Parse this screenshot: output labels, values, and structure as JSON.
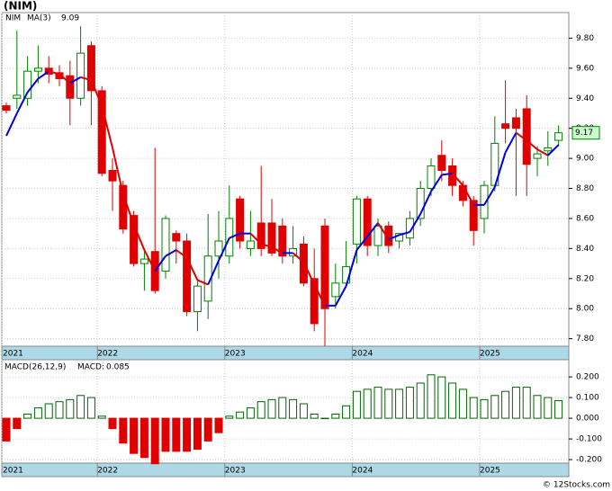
{
  "chart_data": [
    {
      "type": "candlestick",
      "title": "(NIM)",
      "categories": [
        "2021",
        null,
        null,
        null,
        null,
        null,
        null,
        null,
        null,
        "2022",
        null,
        null,
        null,
        null,
        null,
        null,
        null,
        null,
        null,
        null,
        null,
        "2023",
        null,
        null,
        null,
        null,
        null,
        null,
        null,
        null,
        null,
        null,
        null,
        "2024",
        null,
        null,
        null,
        null,
        null,
        null,
        null,
        null,
        null,
        null,
        null,
        "2025",
        null,
        null,
        null,
        null,
        null,
        null,
        null
      ],
      "series": [
        {
          "name": "NIM",
          "up_color": "#008000",
          "down_color": "#e00000",
          "open": [
            9.35,
            9.4,
            9.4,
            9.58,
            9.6,
            9.57,
            9.55,
            9.4,
            9.75,
            9.45,
            8.92,
            8.82,
            8.62,
            8.3,
            8.38,
            8.25,
            8.5,
            8.45,
            7.98,
            8.05,
            8.35,
            8.35,
            8.73,
            8.4,
            8.57,
            8.57,
            8.55,
            8.35,
            8.43,
            8.2,
            8.55,
            8.08,
            8.17,
            8.43,
            8.73,
            8.42,
            8.55,
            8.45,
            8.47,
            8.6,
            8.8,
            9.02,
            8.95,
            8.82,
            8.72,
            8.6,
            8.82,
            9.23,
            9.27,
            9.33,
            9.0,
            9.05,
            9.12
          ],
          "high": [
            9.37,
            9.85,
            9.68,
            9.75,
            9.68,
            9.62,
            9.65,
            9.88,
            9.78,
            9.48,
            9.0,
            8.85,
            8.65,
            8.4,
            9.07,
            8.62,
            8.52,
            8.5,
            8.2,
            8.63,
            8.65,
            8.82,
            8.75,
            8.65,
            8.95,
            8.73,
            8.6,
            8.55,
            8.48,
            8.4,
            8.6,
            8.3,
            8.45,
            8.75,
            8.75,
            8.6,
            8.58,
            8.5,
            8.65,
            8.85,
            9.0,
            9.12,
            9.0,
            8.85,
            8.75,
            8.85,
            9.28,
            9.52,
            9.33,
            9.42,
            9.08,
            9.18,
            9.22
          ],
          "low": [
            9.3,
            9.33,
            9.35,
            9.5,
            9.5,
            9.48,
            9.22,
            9.35,
            9.22,
            8.88,
            8.65,
            8.5,
            8.28,
            8.12,
            8.1,
            8.2,
            8.3,
            7.95,
            7.85,
            7.93,
            8.2,
            8.3,
            8.4,
            8.35,
            8.35,
            8.35,
            8.3,
            8.3,
            8.15,
            7.85,
            7.75,
            8.0,
            8.15,
            8.3,
            8.35,
            8.35,
            8.37,
            8.4,
            8.42,
            8.55,
            8.75,
            8.85,
            8.75,
            8.68,
            8.42,
            8.5,
            8.78,
            9.1,
            8.75,
            8.75,
            8.88,
            8.95,
            9.08
          ],
          "close": [
            9.32,
            9.42,
            9.58,
            9.6,
            9.56,
            9.53,
            9.4,
            9.7,
            9.45,
            8.9,
            8.85,
            8.53,
            8.3,
            8.33,
            8.12,
            8.6,
            8.45,
            7.98,
            8.15,
            8.35,
            8.45,
            8.6,
            8.45,
            8.45,
            8.4,
            8.37,
            8.35,
            8.4,
            8.17,
            7.9,
            8.0,
            8.17,
            8.28,
            8.73,
            8.42,
            8.55,
            8.42,
            8.5,
            8.6,
            8.8,
            8.95,
            8.92,
            8.82,
            8.72,
            8.52,
            8.82,
            9.1,
            9.2,
            9.2,
            8.96,
            9.03,
            9.07,
            9.17
          ]
        },
        {
          "name": "MA(3)",
          "type": "line",
          "color": "#0000dd",
          "falling_color": "#e00000",
          "values": [
            9.15,
            9.3,
            9.44,
            9.53,
            9.58,
            9.56,
            9.5,
            9.54,
            9.52,
            9.35,
            9.07,
            8.76,
            8.56,
            8.39,
            8.25,
            8.35,
            8.39,
            8.34,
            8.19,
            8.16,
            8.32,
            8.47,
            8.5,
            8.5,
            8.43,
            8.41,
            8.37,
            8.37,
            8.31,
            8.16,
            8.02,
            8.02,
            8.15,
            8.39,
            8.48,
            8.57,
            8.46,
            8.49,
            8.51,
            8.63,
            8.78,
            8.89,
            8.9,
            8.82,
            8.69,
            8.69,
            8.81,
            9.04,
            9.17,
            9.12,
            9.06,
            9.02,
            9.09
          ]
        }
      ],
      "ylim": [
        7.75,
        9.97
      ],
      "yticks": [
        {
          "value": 7.8,
          "label": "7.80"
        },
        {
          "value": 8.0,
          "label": "8.00"
        },
        {
          "value": 8.2,
          "label": "8.20"
        },
        {
          "value": 8.4,
          "label": "8.40"
        },
        {
          "value": 8.6,
          "label": "8.60"
        },
        {
          "value": 8.8,
          "label": "8.80"
        },
        {
          "value": 9.0,
          "label": "9.00"
        },
        {
          "value": 9.2,
          "label": "9.20"
        },
        {
          "value": 9.4,
          "label": "9.40"
        },
        {
          "value": 9.6,
          "label": "9.60"
        },
        {
          "value": 9.8,
          "label": "9.80"
        }
      ],
      "grid": true
    },
    {
      "type": "bar",
      "title": "MACD(26,12,9)",
      "value_name": "MACD:",
      "categories": [
        "2021",
        null,
        null,
        null,
        null,
        null,
        null,
        null,
        null,
        "2022",
        null,
        null,
        null,
        null,
        null,
        null,
        null,
        null,
        null,
        null,
        null,
        "2023",
        null,
        null,
        null,
        null,
        null,
        null,
        null,
        null,
        null,
        null,
        null,
        "2024",
        null,
        null,
        null,
        null,
        null,
        null,
        null,
        null,
        null,
        null,
        null,
        "2025",
        null,
        null,
        null,
        null,
        null,
        null,
        null
      ],
      "values": [
        -0.11,
        -0.05,
        0.02,
        0.05,
        0.07,
        0.08,
        0.09,
        0.11,
        0.1,
        0.01,
        -0.05,
        -0.12,
        -0.17,
        -0.19,
        -0.22,
        -0.16,
        -0.16,
        -0.16,
        -0.15,
        -0.11,
        -0.07,
        0.01,
        0.03,
        0.05,
        0.08,
        0.09,
        0.1,
        0.09,
        0.07,
        0.02,
        0.0,
        0.02,
        0.06,
        0.13,
        0.14,
        0.15,
        0.14,
        0.14,
        0.15,
        0.17,
        0.21,
        0.2,
        0.17,
        0.14,
        0.1,
        0.09,
        0.11,
        0.13,
        0.15,
        0.15,
        0.11,
        0.1,
        0.085
      ],
      "positive_color": "#006400",
      "negative_color": "#e00000",
      "ylim": [
        -0.217,
        0.283
      ],
      "yticks": [
        {
          "value": -0.2,
          "label": "-0.200"
        },
        {
          "value": -0.1,
          "label": "-0.100"
        },
        {
          "value": 0,
          "label": "0.000"
        },
        {
          "value": 0.1,
          "label": "0.100"
        },
        {
          "value": 0.2,
          "label": "0.200"
        }
      ],
      "grid": true
    }
  ],
  "footer": "© 12Stocks.com"
}
